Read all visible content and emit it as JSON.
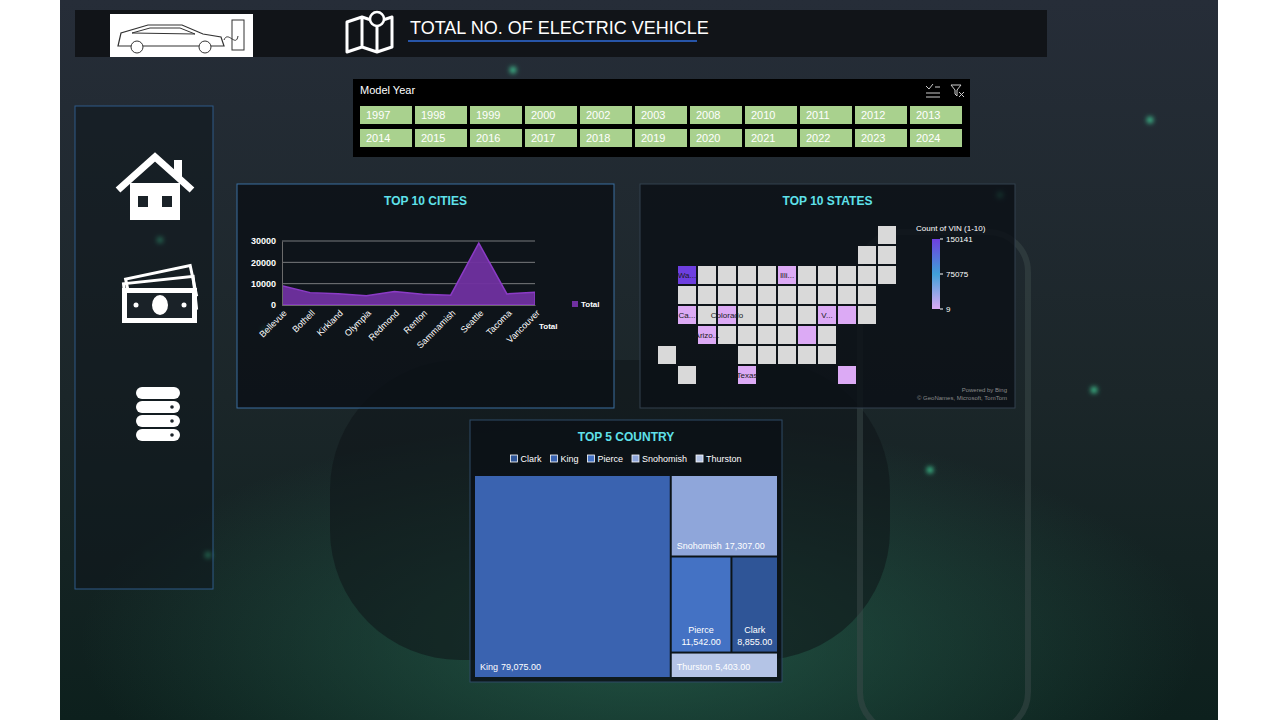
{
  "header": {
    "title": "TOTAL NO. OF ELECTRIC VEHICLE"
  },
  "slicer": {
    "title": "Model Year",
    "items": [
      1997,
      1998,
      1999,
      2000,
      2002,
      2003,
      2008,
      2010,
      2011,
      2012,
      2013,
      2014,
      2015,
      2016,
      2017,
      2018,
      2019,
      2020,
      2021,
      2022,
      2023,
      2024
    ]
  },
  "chart_data": [
    {
      "type": "area",
      "title": "TOP 10 CITIES",
      "categories": [
        "Bellevue",
        "Bothell",
        "Kirkland",
        "Olympia",
        "Redmond",
        "Renton",
        "Sammamish",
        "Seattle",
        "Tacoma",
        "Vancouver"
      ],
      "series": [
        {
          "name": "Total",
          "color": "#7030a0",
          "values": [
            9000,
            5800,
            5300,
            4300,
            6300,
            5000,
            4600,
            29000,
            5200,
            6000
          ]
        }
      ],
      "ylim": [
        0,
        30000
      ],
      "yticks": [
        0,
        10000,
        20000,
        30000
      ],
      "grid": true,
      "legend": "right",
      "series_axis_label": "Total"
    },
    {
      "type": "map",
      "title": "TOP 10 STATES",
      "regions": [
        {
          "label": "Wa...",
          "value": 150141
        },
        {
          "label": "Ca...",
          "value": 102
        },
        {
          "label": "V...",
          "value": 46
        },
        {
          "label": null,
          "value": 33
        },
        {
          "label": "Texas",
          "value": 27
        },
        {
          "label": null,
          "value": 21
        },
        {
          "label": "Illi...",
          "value": 16
        },
        {
          "label": "Colorado",
          "value": 12
        },
        {
          "label": "Arizo...",
          "value": 10
        },
        {
          "label": null,
          "value": 9
        }
      ],
      "colorbar": {
        "title": "Count of VIN (1-10)",
        "range": [
          9,
          150141
        ],
        "ticks": [
          150141,
          75075,
          9
        ],
        "colors": [
          "#dcaaf5",
          "#3fa0d8",
          "#6e3fe0"
        ]
      },
      "credits": [
        "Powered by Bing",
        "© GeoNames, Microsoft, TomTom"
      ]
    },
    {
      "type": "treemap",
      "title": "TOP 5 COUNTRY",
      "categories": [
        "Clark",
        "King",
        "Pierce",
        "Snohomish",
        "Thurston"
      ],
      "values": [
        8855,
        79075,
        11542,
        17307,
        5403
      ],
      "value_labels": [
        "8,855.00",
        "79,075.00",
        "11,542.00",
        "17,307.00",
        "5,403.00"
      ],
      "colors": [
        "#2f5597",
        "#3a63b0",
        "#4472c4",
        "#8fa6da",
        "#b4c4e6"
      ],
      "legend": "top",
      "data_labels": true
    }
  ]
}
